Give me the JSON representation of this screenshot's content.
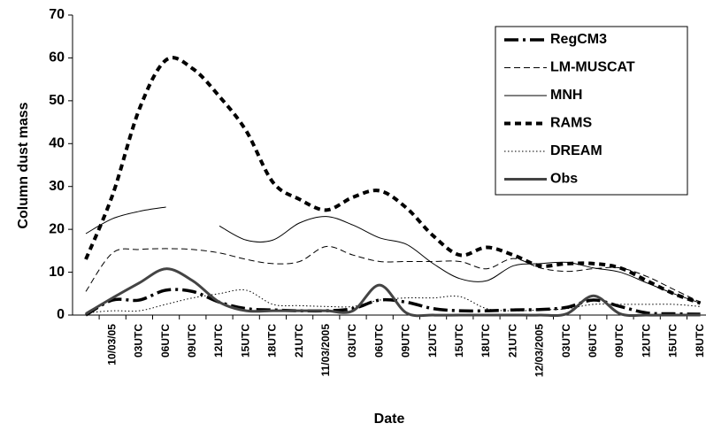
{
  "chart_data": {
    "type": "line",
    "x_label": "Date",
    "y_label": "Column dust mass",
    "categories": [
      null,
      "10/03/05",
      "03UTC",
      "06UTC",
      "09UTC",
      "12UTC",
      "15UTC",
      "18UTC",
      "21UTC",
      "11/03/2005",
      "03UTC",
      "06UTC",
      "09UTC",
      "12UTC",
      "15UTC",
      "18UTC",
      "21UTC",
      "12/03/2005",
      "03UTC",
      "06UTC",
      "09UTC",
      "12UTC",
      "15UTC",
      "18UTC"
    ],
    "ylim": [
      0,
      70
    ],
    "yticks": [
      0,
      10,
      20,
      30,
      40,
      50,
      60,
      70
    ],
    "grid": false,
    "legend": "upper right",
    "series": [
      {
        "name": "RegCM3",
        "color": "#000000",
        "values": [
          0,
          3.5,
          3.5,
          5.8,
          5.5,
          3,
          1.5,
          1.2,
          1,
          1,
          1.5,
          3.5,
          3,
          1.5,
          1,
          1,
          1.2,
          1.3,
          1.8,
          3.5,
          2,
          0.5,
          0.3,
          0.2
        ]
      },
      {
        "name": "LM-MUSCAT",
        "color": "#000000",
        "values": [
          5.5,
          14.5,
          15.3,
          15.5,
          15.3,
          14.5,
          13,
          12,
          12.5,
          16,
          14,
          12.5,
          12.5,
          12.5,
          12.5,
          10.8,
          13.2,
          11,
          10.2,
          10.8,
          11,
          9,
          6,
          3
        ]
      },
      {
        "name": "MNH",
        "color": "#000000",
        "values": [
          19,
          22.5,
          24.2,
          25.2,
          null,
          20.8,
          17.5,
          17.5,
          21.5,
          23,
          21,
          18,
          16.5,
          12,
          8.5,
          8,
          11.5,
          12,
          12.3,
          11,
          10,
          7.5,
          5,
          2.8
        ]
      },
      {
        "name": "RAMS",
        "color": "#000000",
        "values": [
          13,
          28,
          48,
          59.5,
          57.5,
          51,
          43,
          31,
          27,
          24.5,
          27.5,
          29,
          25,
          18.5,
          14,
          15.8,
          14,
          11.5,
          12,
          12,
          11,
          8,
          5,
          2.8
        ]
      },
      {
        "name": "DREAM",
        "color": "#000000",
        "values": [
          0.5,
          1,
          1,
          2.5,
          4,
          5,
          5.8,
          2.5,
          2.2,
          2,
          2,
          3.5,
          4,
          4,
          4.3,
          1.5,
          1,
          1.2,
          1.5,
          2.5,
          2.5,
          2.5,
          2.5,
          2
        ]
      },
      {
        "name": "Obs",
        "color": "#444444",
        "values": [
          0.3,
          4,
          7.5,
          10.8,
          8,
          3,
          1,
          1,
          1,
          1,
          1,
          7,
          0.5,
          0,
          0,
          0,
          0,
          0,
          0.3,
          4.5,
          0.3,
          0,
          0,
          0
        ]
      }
    ]
  }
}
